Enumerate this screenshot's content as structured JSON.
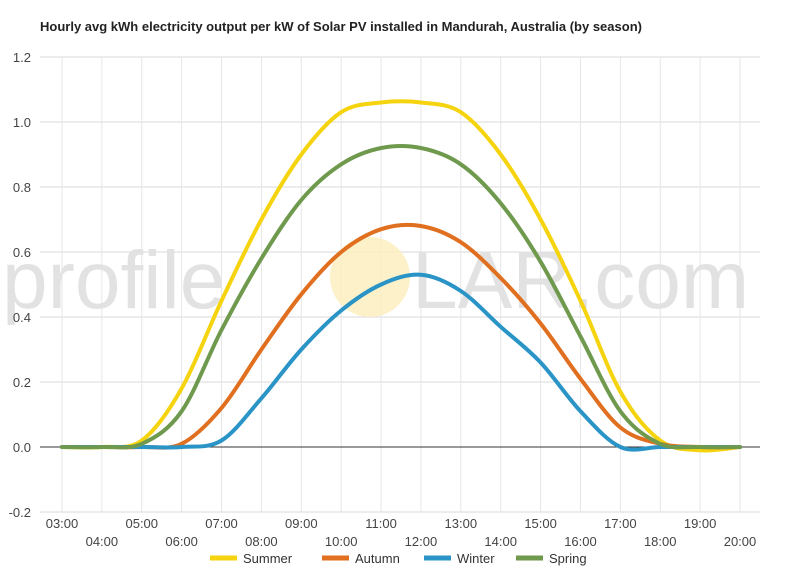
{
  "chart_data": {
    "type": "line",
    "title": "Hourly avg kWh electricity output per kW of Solar PV installed in Mandurah, Australia (by season)",
    "xlabel": "",
    "ylabel": "",
    "x": [
      "03:00",
      "04:00",
      "05:00",
      "06:00",
      "07:00",
      "08:00",
      "09:00",
      "10:00",
      "11:00",
      "12:00",
      "13:00",
      "14:00",
      "15:00",
      "16:00",
      "17:00",
      "18:00",
      "19:00",
      "20:00"
    ],
    "ylim": [
      -0.2,
      1.2
    ],
    "yticks": [
      "-0.2",
      "0.0",
      "0.2",
      "0.4",
      "0.6",
      "0.8",
      "1.0",
      "1.2"
    ],
    "grid": true,
    "legend_position": "bottom",
    "series": [
      {
        "name": "Summer",
        "color": "#f5d40f",
        "values": [
          0.0,
          0.0,
          0.02,
          0.18,
          0.45,
          0.7,
          0.9,
          1.03,
          1.06,
          1.06,
          1.03,
          0.9,
          0.7,
          0.45,
          0.17,
          0.02,
          -0.01,
          0.0
        ]
      },
      {
        "name": "Autumn",
        "color": "#e06f1f",
        "values": [
          0.0,
          0.0,
          0.0,
          0.01,
          0.12,
          0.3,
          0.47,
          0.6,
          0.67,
          0.68,
          0.63,
          0.52,
          0.38,
          0.21,
          0.06,
          0.01,
          0.0,
          0.0
        ]
      },
      {
        "name": "Winter",
        "color": "#2a94c7",
        "values": [
          0.0,
          0.0,
          0.0,
          0.0,
          0.02,
          0.15,
          0.3,
          0.42,
          0.5,
          0.53,
          0.48,
          0.37,
          0.26,
          0.11,
          0.0,
          0.0,
          0.0,
          0.0
        ]
      },
      {
        "name": "Spring",
        "color": "#6f9a4e",
        "values": [
          0.0,
          0.0,
          0.01,
          0.11,
          0.36,
          0.58,
          0.76,
          0.87,
          0.92,
          0.92,
          0.87,
          0.75,
          0.57,
          0.34,
          0.11,
          0.01,
          0.0,
          0.0
        ]
      }
    ]
  },
  "watermark": {
    "left": "profile",
    "right": "LAR.com"
  }
}
